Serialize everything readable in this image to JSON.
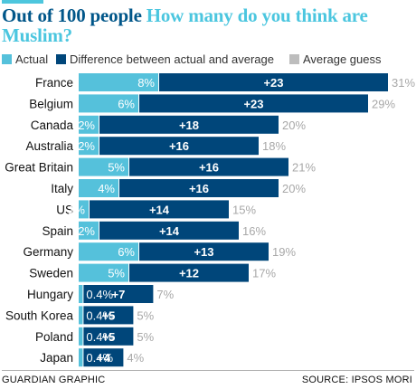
{
  "title_part1": "Out of 100 people",
  "title_part2": "How many do you think are Muslim?",
  "legend": {
    "actual": "Actual",
    "difference": "Difference between actual and average",
    "guess": "Average guess"
  },
  "colors": {
    "actual": "#55c1db",
    "difference": "#00467a",
    "guess_text": "#a8a8a8",
    "title_dark": "#005689",
    "title_light": "#4bc6df"
  },
  "footer": {
    "left": "GUARDIAN GRAPHIC",
    "right": "SOURCE: IPSOS MORI"
  },
  "chart_data": {
    "type": "bar",
    "orientation": "horizontal",
    "stacked": true,
    "categories": [
      "France",
      "Belgium",
      "Canada",
      "Australia",
      "Great Britain",
      "Italy",
      "US",
      "Spain",
      "Germany",
      "Sweden",
      "Hungary",
      "South Korea",
      "Poland",
      "Japan"
    ],
    "series": [
      {
        "name": "Actual",
        "values": [
          8,
          6,
          2,
          2,
          5,
          4,
          1,
          2,
          6,
          5,
          0.4,
          0.4,
          0.4,
          0.4
        ],
        "labels": [
          "8%",
          "6%",
          "2%",
          "2%",
          "5%",
          "4%",
          "1%",
          "2%",
          "6%",
          "5%",
          "0.4%",
          "0.4%",
          "0.4%",
          "0.4%"
        ]
      },
      {
        "name": "Difference between actual and average",
        "values": [
          23,
          23,
          18,
          16,
          16,
          16,
          14,
          14,
          13,
          12,
          7,
          5,
          5,
          4
        ],
        "labels": [
          "+23",
          "+23",
          "+18",
          "+16",
          "+16",
          "+16",
          "+14",
          "+14",
          "+13",
          "+12",
          "+7",
          "+5",
          "+5",
          "+4"
        ]
      }
    ],
    "average_guess": {
      "name": "Average guess",
      "values": [
        31,
        29,
        20,
        18,
        21,
        20,
        15,
        16,
        19,
        17,
        7,
        5,
        5,
        4
      ],
      "labels": [
        "31%",
        "29%",
        "20%",
        "18%",
        "21%",
        "20%",
        "15%",
        "16%",
        "19%",
        "17%",
        "7%",
        "5%",
        "5%",
        "4%"
      ]
    },
    "xlim": [
      0,
      31
    ],
    "grid": false,
    "legend_position": "top"
  }
}
